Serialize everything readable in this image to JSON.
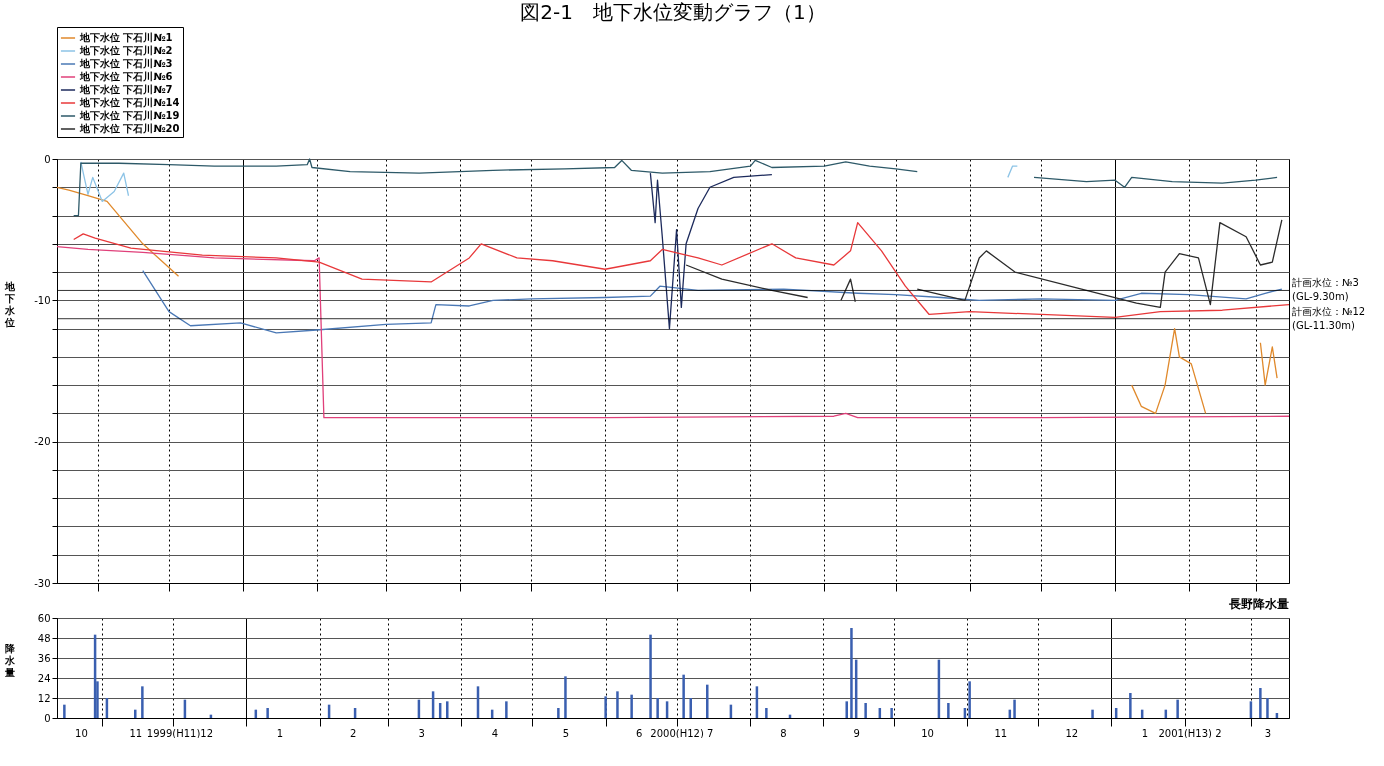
{
  "chart_data": [
    {
      "type": "line",
      "title": "図2-1　地下水位変動グラフ（1）",
      "ylabel": "地下水位",
      "legend": "top left",
      "grid": true,
      "tick_labels": "y",
      "xlim": [
        "1999-10-15",
        "2001-03-15"
      ],
      "xticks": [
        {
          "value": "1999-11-01",
          "label": null
        },
        {
          "value": "1999-12-01",
          "label": null
        },
        {
          "value": "2000-01-01",
          "label": null
        },
        {
          "value": "2000-02-01",
          "label": null
        },
        {
          "value": "2000-03-01",
          "label": null
        },
        {
          "value": "2000-04-01",
          "label": null
        },
        {
          "value": "2000-05-01",
          "label": null
        },
        {
          "value": "2000-06-01",
          "label": null
        },
        {
          "value": "2000-07-01",
          "label": null
        },
        {
          "value": "2000-08-01",
          "label": null
        },
        {
          "value": "2000-09-01",
          "label": null
        },
        {
          "value": "2000-10-01",
          "label": null
        },
        {
          "value": "2000-11-01",
          "label": null
        },
        {
          "value": "2000-12-01",
          "label": null
        },
        {
          "value": "2001-01-01",
          "label": null
        },
        {
          "value": "2001-02-01",
          "label": null
        },
        {
          "value": "2001-03-01",
          "label": null
        }
      ],
      "ylim": [
        -30,
        0
      ],
      "yticks": [
        0,
        {
          "value": -2,
          "label": null
        },
        {
          "value": -4,
          "label": null
        },
        {
          "value": -6,
          "label": null
        },
        {
          "value": -8,
          "label": null
        },
        -10,
        {
          "value": -12,
          "label": null
        },
        {
          "value": -14,
          "label": null
        },
        {
          "value": -16,
          "label": null
        },
        {
          "value": -18,
          "label": null
        },
        -20,
        {
          "value": -22,
          "label": null
        },
        {
          "value": -24,
          "label": null
        },
        {
          "value": -26,
          "label": null
        },
        {
          "value": -28,
          "label": null
        },
        -30
      ],
      "ref_lines": [
        {
          "axis": "y",
          "value": -9.3,
          "label": "計画水位：№3\n(GL-9.30m)",
          "color": "#000000"
        },
        {
          "axis": "y",
          "value": -11.3,
          "label": "計画水位：№12\n(GL-11.30m)",
          "color": "#000000"
        }
      ],
      "series": [
        {
          "name": "地下水位 下石川№1",
          "color": "#e0892b",
          "x": [
            "1999-10-15",
            "1999-10-20",
            "1999-10-28",
            "1999-11-05",
            "1999-11-20",
            "1999-12-05",
            "1999-12-06",
            "2001-01-08",
            "2001-01-12",
            "2001-01-18",
            "2001-01-22",
            "2001-01-26",
            "2001-01-28",
            "2001-02-02",
            "2001-02-08",
            "2001-02-10",
            "2001-03-03",
            "2001-03-05",
            "2001-03-08",
            "2001-03-10"
          ],
          "values": [
            -2.0,
            -2.2,
            -2.6,
            -3.0,
            -6.0,
            -8.3,
            null,
            -16.0,
            -17.5,
            -18.0,
            -16.0,
            -12.0,
            -14.0,
            -14.5,
            -18.0,
            null,
            -13.0,
            -16.0,
            -13.3,
            -15.5
          ]
        },
        {
          "name": "地下水位 下石川№2",
          "color": "#8cc3e6",
          "x": [
            "1999-10-25",
            "1999-10-28",
            "1999-10-30",
            "1999-11-03",
            "1999-11-08",
            "1999-11-12",
            "1999-11-14",
            "1999-11-16",
            "2000-11-17",
            "2000-11-19",
            "2000-11-21"
          ],
          "values": [
            -0.2,
            -2.5,
            -1.3,
            -3.0,
            -2.3,
            -1.0,
            -2.6,
            null,
            -1.3,
            -0.5,
            -0.5
          ]
        },
        {
          "name": "地下水位 下石川№3",
          "color": "#4a78b5",
          "x": [
            "1999-11-20",
            "1999-12-01",
            "1999-12-10",
            "1999-12-31",
            "2000-01-15",
            "2000-02-01",
            "2000-03-01",
            "2000-03-20",
            "2000-03-22",
            "2000-04-05",
            "2000-04-15",
            "2000-05-01",
            "2000-06-01",
            "2000-06-20",
            "2000-06-24",
            "2000-07-10",
            "2000-08-15",
            "2000-09-15",
            "2000-10-01",
            "2000-10-20",
            "2000-11-05",
            "2000-12-01",
            "2001-01-01",
            "2001-01-12",
            "2001-02-01",
            "2001-02-25",
            "2001-03-05",
            "2001-03-12"
          ],
          "values": [
            -7.9,
            -10.8,
            -11.8,
            -11.6,
            -12.3,
            -12.1,
            -11.7,
            -11.6,
            -10.3,
            -10.4,
            -10.0,
            -9.9,
            -9.8,
            -9.7,
            -9.0,
            -9.3,
            -9.2,
            -9.5,
            -9.6,
            -9.8,
            -10.0,
            -9.9,
            -10.0,
            -9.5,
            -9.6,
            -9.9,
            -9.5,
            -9.2
          ]
        },
        {
          "name": "地下水位 下石川№6",
          "color": "#e0407a",
          "x": [
            "1999-10-15",
            "1999-10-28",
            "1999-11-20",
            "1999-12-20",
            "2000-01-31",
            "2000-02-02",
            "2000-02-04",
            "2000-03-01",
            "2000-06-01",
            "2000-09-05",
            "2000-09-10",
            "2000-09-15",
            "2000-12-01",
            "2001-03-15"
          ],
          "values": [
            -6.2,
            -6.4,
            -6.6,
            -7.0,
            -7.2,
            -7.0,
            -18.3,
            -18.3,
            -18.3,
            -18.2,
            -18.0,
            -18.3,
            -18.3,
            -18.2
          ]
        },
        {
          "name": "地下水位 下石川№7",
          "color": "#1c2a5c",
          "x": [
            "2000-06-20",
            "2000-06-22",
            "2000-06-23",
            "2000-06-25",
            "2000-06-28",
            "2000-07-01",
            "2000-07-03",
            "2000-07-05",
            "2000-07-10",
            "2000-07-15",
            "2000-07-25",
            "2000-08-10"
          ],
          "values": [
            -1.0,
            -4.5,
            -1.5,
            -5.5,
            -12.0,
            -5.0,
            -10.5,
            -6.0,
            -3.5,
            -2.0,
            -1.3,
            -1.1
          ]
        },
        {
          "name": "地下水位 下石川№14",
          "color": "#e8383a",
          "x": [
            "1999-10-22",
            "1999-10-26",
            "1999-10-31",
            "1999-11-15",
            "1999-12-15",
            "2000-01-15",
            "2000-02-02",
            "2000-02-20",
            "2000-03-20",
            "2000-04-05",
            "2000-04-10",
            "2000-04-25",
            "2000-05-10",
            "2000-06-01",
            "2000-06-20",
            "2000-06-25",
            "2000-07-10",
            "2000-07-20",
            "2000-08-10",
            "2000-08-20",
            "2000-09-05",
            "2000-09-12",
            "2000-09-15",
            "2000-09-25",
            "2000-10-05",
            "2000-10-15",
            "2000-11-01",
            "2000-12-01",
            "2001-01-01",
            "2001-01-20",
            "2001-02-15",
            "2001-03-15"
          ],
          "values": [
            -5.7,
            -5.3,
            -5.6,
            -6.3,
            -6.8,
            -7.0,
            -7.3,
            -8.5,
            -8.7,
            -7.0,
            -6.0,
            -7.0,
            -7.2,
            -7.8,
            -7.2,
            -6.4,
            -7.0,
            -7.5,
            -6.0,
            -7.0,
            -7.5,
            -6.5,
            -4.5,
            -6.5,
            -9.0,
            -11.0,
            -10.8,
            -11.0,
            -11.2,
            -10.8,
            -10.7,
            -10.3
          ]
        },
        {
          "name": "地下水位 下石川№19",
          "color": "#2d5968",
          "x": [
            "1999-10-22",
            "1999-10-24",
            "1999-10-25",
            "1999-11-10",
            "1999-12-01",
            "1999-12-20",
            "2000-01-15",
            "2000-01-28",
            "2000-01-29",
            "2000-01-30",
            "2000-02-15",
            "2000-03-15",
            "2000-04-15",
            "2000-05-15",
            "2000-06-05",
            "2000-06-08",
            "2000-06-12",
            "2000-06-25",
            "2000-07-15",
            "2000-08-01",
            "2000-08-03",
            "2000-08-10",
            "2000-09-01",
            "2000-09-10",
            "2000-09-20",
            "2000-10-01",
            "2000-10-10",
            "2000-10-11",
            "2000-11-28",
            "2000-12-20",
            "2001-01-01",
            "2001-01-05",
            "2001-01-08",
            "2001-01-25",
            "2001-02-15",
            "2001-03-01",
            "2001-03-10"
          ],
          "values": [
            -4.0,
            -4.0,
            -0.3,
            -0.3,
            -0.4,
            -0.5,
            -0.5,
            -0.4,
            0,
            -0.6,
            -0.9,
            -1.0,
            -0.8,
            -0.7,
            -0.6,
            -0.1,
            -0.8,
            -1.0,
            -0.9,
            -0.5,
            -0.1,
            -0.6,
            -0.5,
            -0.2,
            -0.5,
            -0.7,
            -0.9,
            null,
            -1.3,
            -1.6,
            -1.5,
            -2.0,
            -1.3,
            -1.6,
            -1.7,
            -1.5,
            -1.3
          ]
        },
        {
          "name": "地下水位 下石川№20",
          "color": "#2b2b2b",
          "x": [
            "2000-07-05",
            "2000-07-20",
            "2000-08-10",
            "2000-08-25",
            "2000-08-26",
            "2000-09-08",
            "2000-09-12",
            "2000-09-14",
            "2000-09-15",
            "2000-10-10",
            "2000-10-30",
            "2000-11-05",
            "2000-11-08",
            "2000-11-20",
            "2000-12-20",
            "2001-01-10",
            "2001-01-20",
            "2001-01-22",
            "2001-01-28",
            "2001-02-05",
            "2001-02-10",
            "2001-02-14",
            "2001-02-25",
            "2001-03-03",
            "2001-03-08",
            "2001-03-12"
          ],
          "values": [
            -7.5,
            -8.5,
            -9.3,
            -9.8,
            null,
            -10.0,
            -8.5,
            -10.1,
            null,
            -9.2,
            -10.0,
            -7.0,
            -6.5,
            -8.0,
            -9.3,
            -10.2,
            -10.5,
            -8.0,
            -6.7,
            -7.0,
            -10.3,
            -4.5,
            -5.5,
            -7.5,
            -7.3,
            -4.3
          ]
        }
      ]
    },
    {
      "type": "bar",
      "title": "長野降水量",
      "ylabel": "降水量",
      "grid": true,
      "xlim": [
        "1999-10-15",
        "2001-03-15"
      ],
      "xticks": [
        {
          "value": "1999-10-23",
          "label": "10"
        },
        {
          "value": "1999-11-01",
          "label": null
        },
        {
          "value": "1999-11-15",
          "label": "11"
        },
        {
          "value": "1999-12-01",
          "label": "1999(H11)"
        },
        {
          "value": "1999-12-15",
          "label": "12"
        },
        {
          "value": "2000-01-01",
          "label": null
        },
        {
          "value": "2000-01-15",
          "label": "1"
        },
        {
          "value": "2000-02-01",
          "label": null
        },
        {
          "value": "2000-02-15",
          "label": "2"
        },
        {
          "value": "2000-03-01",
          "label": null
        },
        {
          "value": "2000-03-15",
          "label": "3"
        },
        {
          "value": "2000-04-01",
          "label": null
        },
        {
          "value": "2000-04-15",
          "label": "4"
        },
        {
          "value": "2000-05-01",
          "label": null
        },
        {
          "value": "2000-05-15",
          "label": "5"
        },
        {
          "value": "2000-06-01",
          "label": null
        },
        {
          "value": "2000-06-15",
          "label": "6"
        },
        {
          "value": "2000-07-01",
          "label": "2000(H12)"
        },
        {
          "value": "2000-07-15",
          "label": "7"
        },
        {
          "value": "2000-08-01",
          "label": null
        },
        {
          "value": "2000-08-15",
          "label": "8"
        },
        {
          "value": "2000-09-01",
          "label": null
        },
        {
          "value": "2000-09-15",
          "label": "9"
        },
        {
          "value": "2000-10-01",
          "label": null
        },
        {
          "value": "2000-10-15",
          "label": "10"
        },
        {
          "value": "2000-11-01",
          "label": null
        },
        {
          "value": "2000-11-15",
          "label": "11"
        },
        {
          "value": "2000-12-01",
          "label": null
        },
        {
          "value": "2000-12-15",
          "label": "12"
        },
        {
          "value": "2001-01-01",
          "label": null
        },
        {
          "value": "2001-01-15",
          "label": "1"
        },
        {
          "value": "2001-02-01",
          "label": "2001(H13)"
        },
        {
          "value": "2001-02-15",
          "label": "2"
        },
        {
          "value": "2001-03-01",
          "label": null
        },
        {
          "value": "2001-03-08",
          "label": "3"
        }
      ],
      "ylim": [
        0,
        60
      ],
      "yticks": [
        0,
        12,
        24,
        36,
        48,
        60
      ],
      "series": [
        {
          "color": "#3a5fb0",
          "x": [
            "1999-10-16",
            "1999-10-29",
            "1999-10-30",
            "1999-11-03",
            "1999-11-15",
            "1999-11-18",
            "1999-12-06",
            "1999-12-17",
            "2000-01-05",
            "2000-01-10",
            "2000-02-05",
            "2000-02-16",
            "2000-03-14",
            "2000-03-20",
            "2000-03-23",
            "2000-03-26",
            "2000-04-08",
            "2000-04-14",
            "2000-04-20",
            "2000-05-12",
            "2000-05-15",
            "2000-06-01",
            "2000-06-06",
            "2000-06-12",
            "2000-06-20",
            "2000-06-23",
            "2000-06-27",
            "2000-07-04",
            "2000-07-07",
            "2000-07-14",
            "2000-07-24",
            "2000-08-04",
            "2000-08-08",
            "2000-08-18",
            "2000-09-11",
            "2000-09-13",
            "2000-09-15",
            "2000-09-19",
            "2000-09-25",
            "2000-09-30",
            "2000-10-20",
            "2000-10-24",
            "2000-10-31",
            "2000-11-02",
            "2000-11-19",
            "2000-11-21",
            "2000-12-24",
            "2001-01-03",
            "2001-01-09",
            "2001-01-14",
            "2001-01-24",
            "2001-01-29",
            "2001-03-01",
            "2001-03-05",
            "2001-03-08",
            "2001-03-12"
          ],
          "values": [
            8,
            50,
            22,
            12,
            5,
            19,
            11,
            2,
            5,
            6,
            8,
            6,
            11,
            16,
            9,
            10,
            19,
            5,
            10,
            6,
            25,
            13,
            16,
            14,
            50,
            12,
            10,
            26,
            12,
            20,
            8,
            19,
            6,
            2,
            10,
            54,
            35,
            9,
            6,
            6,
            35,
            9,
            6,
            22,
            5,
            11,
            5,
            6,
            15,
            5,
            5,
            11,
            10,
            18,
            12,
            3
          ]
        }
      ]
    }
  ]
}
